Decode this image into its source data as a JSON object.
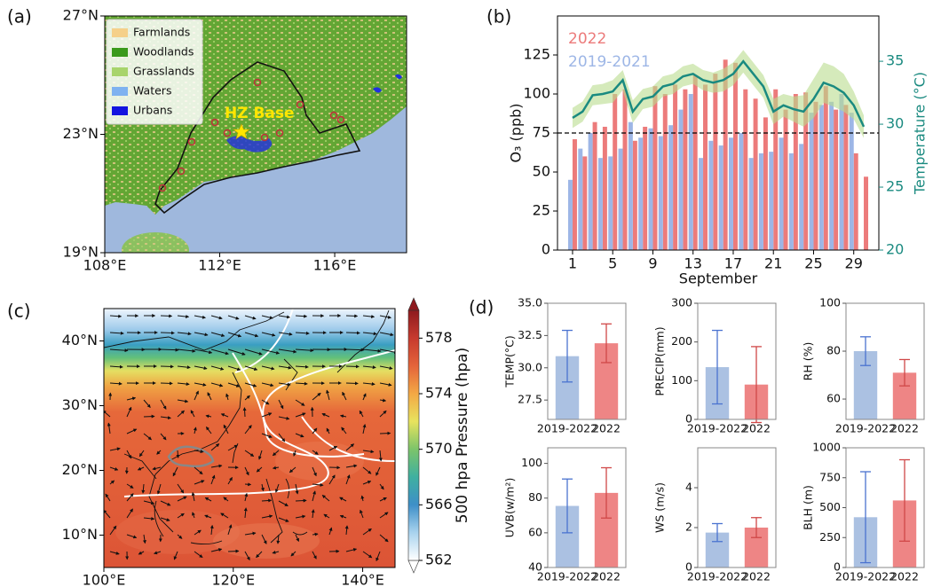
{
  "chart_data": [
    {
      "type": "map",
      "panel_label": "(a)",
      "xlim": [
        108,
        118.5
      ],
      "ylim": [
        19,
        27
      ],
      "xticks": [
        {
          "value": 108,
          "label": "108°E"
        },
        {
          "value": 112,
          "label": "112°E"
        },
        {
          "value": 116,
          "label": "116°E"
        }
      ],
      "yticks": [
        {
          "value": 19,
          "label": "19°N"
        },
        {
          "value": 23,
          "label": "23°N"
        },
        {
          "value": 27,
          "label": "27°N"
        }
      ],
      "legend": [
        {
          "name": "Farmlands",
          "color": "#f5d08a"
        },
        {
          "name": "Woodlands",
          "color": "#3b9a1c"
        },
        {
          "name": "Grasslands",
          "color": "#a8d46c"
        },
        {
          "name": "Waters",
          "color": "#7fb2f0"
        },
        {
          "name": "Urbans",
          "color": "#1414e0"
        }
      ],
      "annotation": "HZ Base"
    },
    {
      "type": "bar",
      "panel_label": "(b)",
      "xlabel": "September",
      "ylabel": "O₃ (ppb)",
      "y2label": "Temperature (°C)",
      "x": [
        1,
        2,
        3,
        4,
        5,
        6,
        7,
        8,
        9,
        10,
        11,
        12,
        13,
        14,
        15,
        16,
        17,
        18,
        19,
        20,
        21,
        22,
        23,
        24,
        25,
        26,
        27,
        28,
        29,
        30
      ],
      "xlim": [
        -0.5,
        31.5
      ],
      "xticks": [
        1,
        5,
        9,
        13,
        17,
        21,
        25,
        29
      ],
      "ylim": [
        0,
        150
      ],
      "yticks": [
        0,
        25,
        50,
        75,
        100,
        125
      ],
      "y2lim": [
        20,
        38.6
      ],
      "y2ticks": [
        20,
        25,
        30,
        35
      ],
      "y2color": "#1a8a80",
      "hline": 75,
      "series": [
        {
          "name": "2022",
          "color": "#ec7b7b",
          "values": [
            71,
            60,
            82,
            79,
            100,
            103,
            70,
            79,
            105,
            100,
            106,
            103,
            112,
            106,
            113,
            122,
            120,
            103,
            97,
            85,
            103,
            90,
            100,
            101,
            95,
            105,
            90,
            93,
            62,
            47
          ]
        },
        {
          "name": "2019-2021",
          "color": "#9db6e6",
          "values": [
            45,
            65,
            75,
            59,
            60,
            65,
            82,
            72,
            78,
            73,
            80,
            90,
            100,
            59,
            70,
            67,
            72,
            75,
            59,
            62,
            63,
            72,
            62,
            68,
            88,
            93,
            95,
            100,
            88,
            null
          ]
        },
        {
          "type": "line",
          "axis": "y2",
          "color": "#1a8a80",
          "band_color": "#b9dc8e",
          "values": [
            30.5,
            31,
            32.3,
            32.4,
            32.6,
            33.5,
            31,
            32,
            32.2,
            33,
            33.2,
            33.8,
            34,
            33.5,
            33.3,
            33.5,
            34,
            35,
            34,
            33,
            31,
            31.5,
            31.2,
            31,
            32,
            33.3,
            33,
            32.5,
            31.5,
            29.8
          ],
          "upper": [
            31.3,
            31.8,
            33.1,
            33.2,
            33.5,
            34.3,
            31.9,
            32.8,
            33.0,
            33.8,
            34.0,
            34.6,
            34.8,
            34.3,
            34.1,
            34.4,
            34.9,
            35.9,
            34.9,
            33.9,
            32.0,
            32.4,
            32.2,
            32.3,
            33.6,
            34.9,
            34.6,
            34.0,
            32.6,
            30.7
          ],
          "lower": [
            29.7,
            30.2,
            31.5,
            31.6,
            31.7,
            32.7,
            30.1,
            31.2,
            31.4,
            32.2,
            32.4,
            33.0,
            33.2,
            32.7,
            32.5,
            32.6,
            33.1,
            34.1,
            33.1,
            32.1,
            30.0,
            30.6,
            30.2,
            29.8,
            30.5,
            31.7,
            31.4,
            31.0,
            30.4,
            28.9
          ]
        }
      ]
    },
    {
      "type": "map",
      "panel_label": "(c)",
      "xlim": [
        100,
        145
      ],
      "ylim": [
        5,
        45
      ],
      "xticks": [
        {
          "value": 100,
          "label": "100°E"
        },
        {
          "value": 120,
          "label": "120°E"
        },
        {
          "value": 140,
          "label": "140°E"
        }
      ],
      "yticks": [
        {
          "value": 10,
          "label": "10°N"
        },
        {
          "value": 20,
          "label": "20°N"
        },
        {
          "value": 30,
          "label": "30°N"
        },
        {
          "value": 40,
          "label": "40°N"
        }
      ],
      "colorbar": {
        "label": "500 hpa Pressure (hpa)",
        "lim": [
          562,
          580
        ],
        "ticks": [
          562,
          566,
          570,
          574,
          578
        ],
        "colors": [
          "#ffffff",
          "#a9d3ee",
          "#3e8fc8",
          "#3fb0a0",
          "#7cc46a",
          "#e8e35e",
          "#f3a845",
          "#e4643a",
          "#c73a2e",
          "#8e1a1e"
        ]
      }
    },
    {
      "type": "bar",
      "panel_label": "(d)",
      "ylabel": "TEMP(°C)",
      "categories": [
        "2019-2022",
        "2022"
      ],
      "values": [
        30.9,
        31.9
      ],
      "errors": [
        2.0,
        1.5
      ],
      "colors": [
        "#abc1e2",
        "#ee8585"
      ],
      "error_colors": [
        "#4a73d0",
        "#d04848"
      ],
      "ylim": [
        26,
        35
      ],
      "yticks": [
        27.5,
        {
          "value": 30,
          "label": "30.0"
        },
        32.5,
        {
          "value": 35,
          "label": "35.0"
        }
      ]
    },
    {
      "type": "bar",
      "ylabel": "PRECIP(mm)",
      "categories": [
        "2019-2022",
        "2022"
      ],
      "values": [
        135,
        90
      ],
      "errors": [
        95,
        98
      ],
      "colors": [
        "#abc1e2",
        "#ee8585"
      ],
      "error_colors": [
        "#4a73d0",
        "#d04848"
      ],
      "ylim": [
        0,
        300
      ],
      "yticks": [
        0,
        100,
        200,
        300
      ]
    },
    {
      "type": "bar",
      "ylabel": "RH (%)",
      "categories": [
        "2019-2022",
        "2022"
      ],
      "values": [
        80,
        71
      ],
      "errors": [
        6,
        5.5
      ],
      "colors": [
        "#abc1e2",
        "#ee8585"
      ],
      "error_colors": [
        "#4a73d0",
        "#d04848"
      ],
      "ylim": [
        51.5,
        100
      ],
      "yticks": [
        60,
        80,
        100
      ]
    },
    {
      "type": "bar",
      "ylabel": "UVB(w/m²)",
      "categories": [
        "2019-2022",
        "2022"
      ],
      "values": [
        75.5,
        83
      ],
      "errors": [
        15.5,
        14.5
      ],
      "colors": [
        "#abc1e2",
        "#ee8585"
      ],
      "error_colors": [
        "#4a73d0",
        "#d04848"
      ],
      "ylim": [
        40,
        109
      ],
      "yticks": [
        40,
        60,
        80,
        100
      ]
    },
    {
      "type": "bar",
      "ylabel": "WS (m/s)",
      "categories": [
        "2019-2022",
        "2022"
      ],
      "values": [
        1.75,
        2.0
      ],
      "errors": [
        0.45,
        0.5
      ],
      "colors": [
        "#abc1e2",
        "#ee8585"
      ],
      "error_colors": [
        "#4a73d0",
        "#d04848"
      ],
      "ylim": [
        0,
        6
      ],
      "yticks": [
        0,
        2,
        4
      ]
    },
    {
      "type": "bar",
      "ylabel": "BLH (m)",
      "categories": [
        "2019-2022",
        "2022"
      ],
      "values": [
        420,
        560
      ],
      "errors": [
        380,
        340
      ],
      "colors": [
        "#abc1e2",
        "#ee8585"
      ],
      "error_colors": [
        "#4a73d0",
        "#d04848"
      ],
      "ylim": [
        0,
        1000
      ],
      "yticks": [
        0,
        250,
        500,
        750,
        1000
      ]
    }
  ]
}
